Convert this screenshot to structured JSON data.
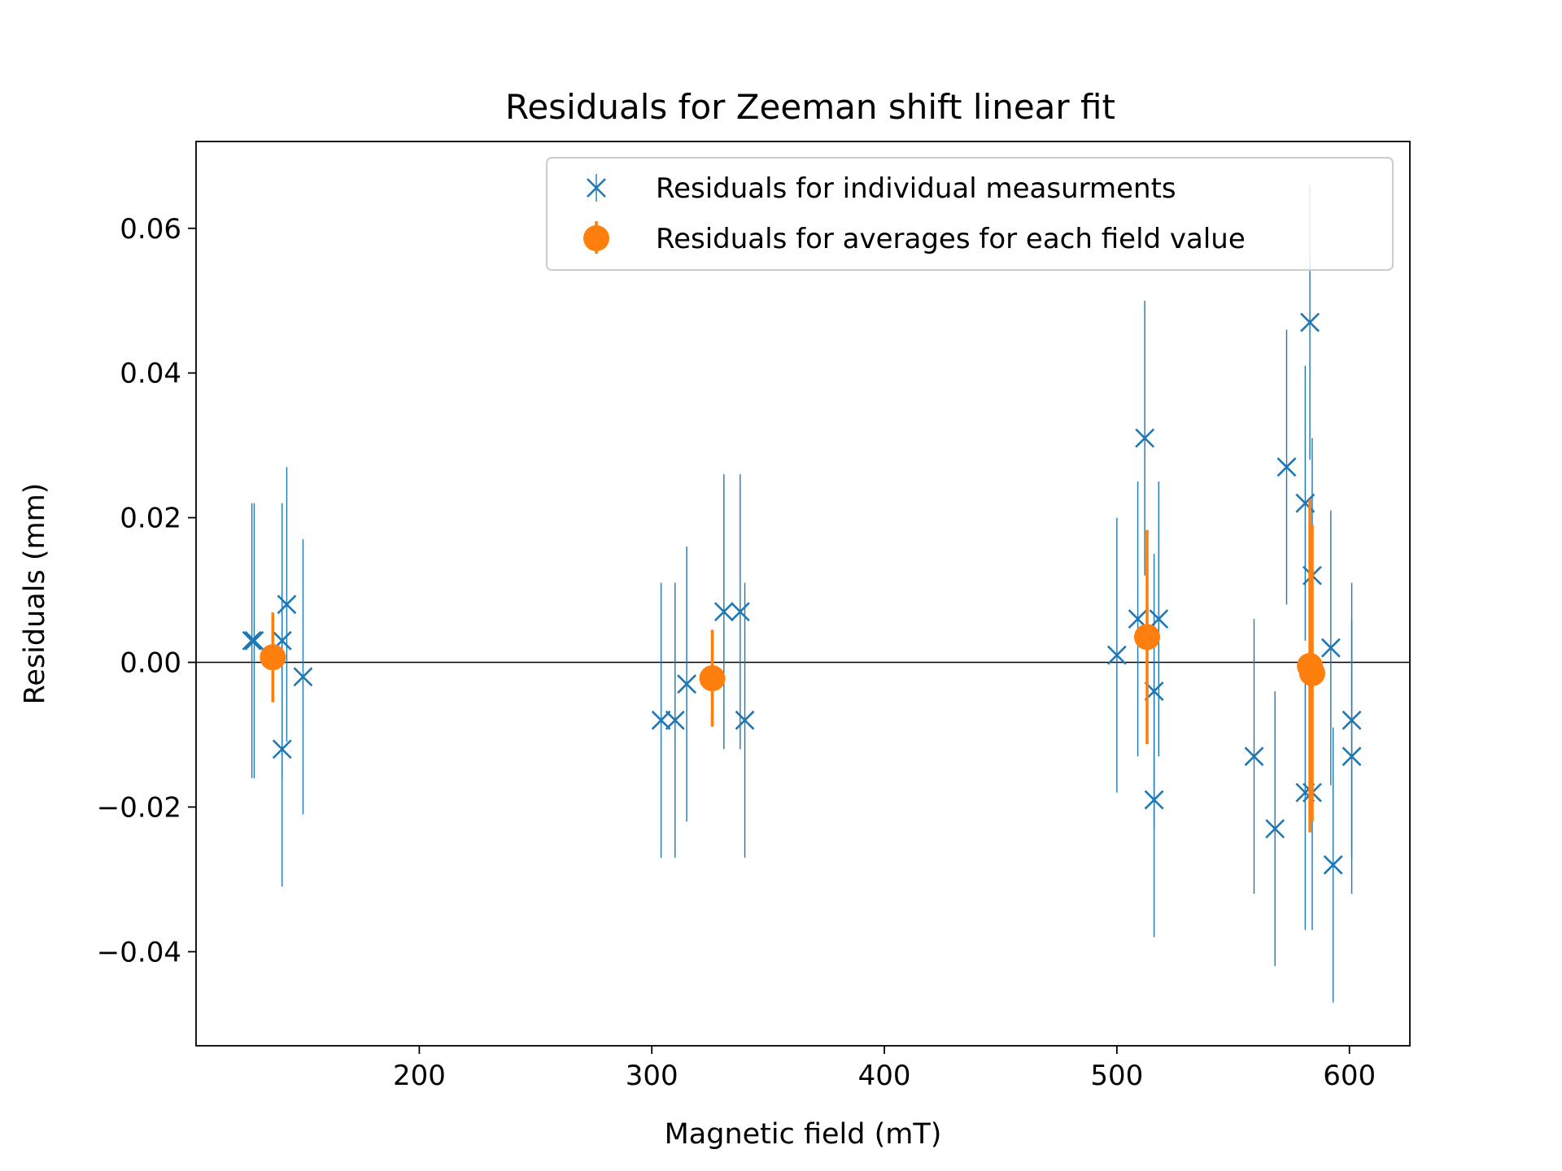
{
  "chart_data": {
    "type": "scatter",
    "title": "Residuals for Zeeman shift linear fit",
    "xlabel": "Magnetic field (mT)",
    "ylabel": "Residuals (mm)",
    "xlim": [
      104,
      626
    ],
    "ylim": [
      -0.053,
      0.072
    ],
    "xticks": [
      200,
      300,
      400,
      500,
      600
    ],
    "yticks": [
      -0.04,
      -0.02,
      0.0,
      0.02,
      0.04,
      0.06
    ],
    "xtick_labels": [
      "200",
      "300",
      "400",
      "500",
      "600"
    ],
    "ytick_labels": [
      "−0.04",
      "−0.02",
      "0.00",
      "0.02",
      "0.04",
      "0.06"
    ],
    "zero_line": true,
    "grid": false,
    "legend_position": "top-right",
    "series": [
      {
        "name": "Residuals for individual measurments",
        "marker": "x",
        "color": "#1f77b4",
        "points": [
          {
            "x": 128,
            "y": 0.003,
            "err": 0.019
          },
          {
            "x": 129,
            "y": 0.003,
            "err": 0.019
          },
          {
            "x": 141,
            "y": -0.012,
            "err": 0.019
          },
          {
            "x": 141,
            "y": 0.003,
            "err": 0.019
          },
          {
            "x": 143,
            "y": 0.008,
            "err": 0.019
          },
          {
            "x": 150,
            "y": -0.002,
            "err": 0.019
          },
          {
            "x": 304,
            "y": -0.008,
            "err": 0.019
          },
          {
            "x": 310,
            "y": -0.008,
            "err": 0.019
          },
          {
            "x": 315,
            "y": -0.003,
            "err": 0.019
          },
          {
            "x": 331,
            "y": 0.007,
            "err": 0.019
          },
          {
            "x": 338,
            "y": 0.007,
            "err": 0.019
          },
          {
            "x": 340,
            "y": -0.008,
            "err": 0.019
          },
          {
            "x": 500,
            "y": 0.001,
            "err": 0.019
          },
          {
            "x": 509,
            "y": 0.006,
            "err": 0.019
          },
          {
            "x": 512,
            "y": 0.031,
            "err": 0.019
          },
          {
            "x": 516,
            "y": -0.004,
            "err": 0.019
          },
          {
            "x": 516,
            "y": -0.019,
            "err": 0.019
          },
          {
            "x": 518,
            "y": 0.006,
            "err": 0.019
          },
          {
            "x": 559,
            "y": -0.013,
            "err": 0.019
          },
          {
            "x": 568,
            "y": -0.023,
            "err": 0.019
          },
          {
            "x": 573,
            "y": 0.027,
            "err": 0.019
          },
          {
            "x": 581,
            "y": 0.022,
            "err": 0.019
          },
          {
            "x": 581,
            "y": -0.018,
            "err": 0.019
          },
          {
            "x": 583,
            "y": 0.047,
            "err": 0.019
          },
          {
            "x": 584,
            "y": 0.012,
            "err": 0.019
          },
          {
            "x": 584,
            "y": -0.018,
            "err": 0.019
          },
          {
            "x": 592,
            "y": 0.002,
            "err": 0.019
          },
          {
            "x": 593,
            "y": -0.028,
            "err": 0.019
          },
          {
            "x": 601,
            "y": -0.008,
            "err": 0.019
          },
          {
            "x": 601,
            "y": -0.013,
            "err": 0.019
          }
        ]
      },
      {
        "name": "Residuals for averages for each field value",
        "marker": "o",
        "color": "#ff7f0e",
        "points": [
          {
            "x": 137,
            "y": 0.0007,
            "err": 0.0062
          },
          {
            "x": 326,
            "y": -0.0022,
            "err": 0.0067
          },
          {
            "x": 513,
            "y": 0.0035,
            "err": 0.0148
          },
          {
            "x": 583,
            "y": -0.0005,
            "err": 0.023
          },
          {
            "x": 584,
            "y": -0.0015,
            "err": 0.0205
          }
        ]
      }
    ]
  }
}
